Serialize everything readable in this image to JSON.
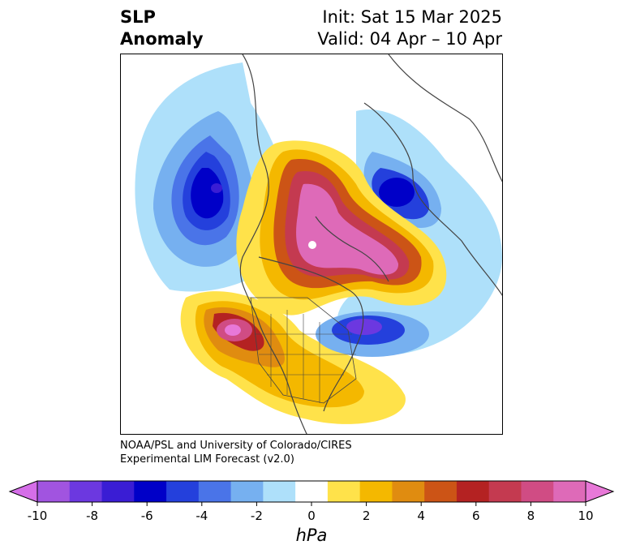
{
  "title": {
    "variable": "SLP",
    "subtitle": "Anomaly",
    "init": "Init: Sat 15 Mar 2025",
    "valid": "Valid: 04 Apr – 10 Apr"
  },
  "credit": {
    "line1": "NOAA/PSL and University of Colorado/CIRES",
    "line2": "Experimental LIM Forecast (v2.0)"
  },
  "colorbar": {
    "unit": "hPa",
    "ticks": [
      "-10",
      "-8",
      "-6",
      "-4",
      "-2",
      "0",
      "2",
      "4",
      "6",
      "8",
      "10"
    ],
    "colors": [
      "#a154e0",
      "#6c38e0",
      "#3a1dd4",
      "#0000c8",
      "#2440dc",
      "#4a74e8",
      "#76b0f0",
      "#aee0fa",
      "#ffffff",
      "#ffe24a",
      "#f4b800",
      "#e08c10",
      "#cc5416",
      "#b42222",
      "#c43a50",
      "#d04c84",
      "#de6ab8"
    ],
    "ext_low": "#d56ee8",
    "ext_high": "#e878d8"
  }
}
